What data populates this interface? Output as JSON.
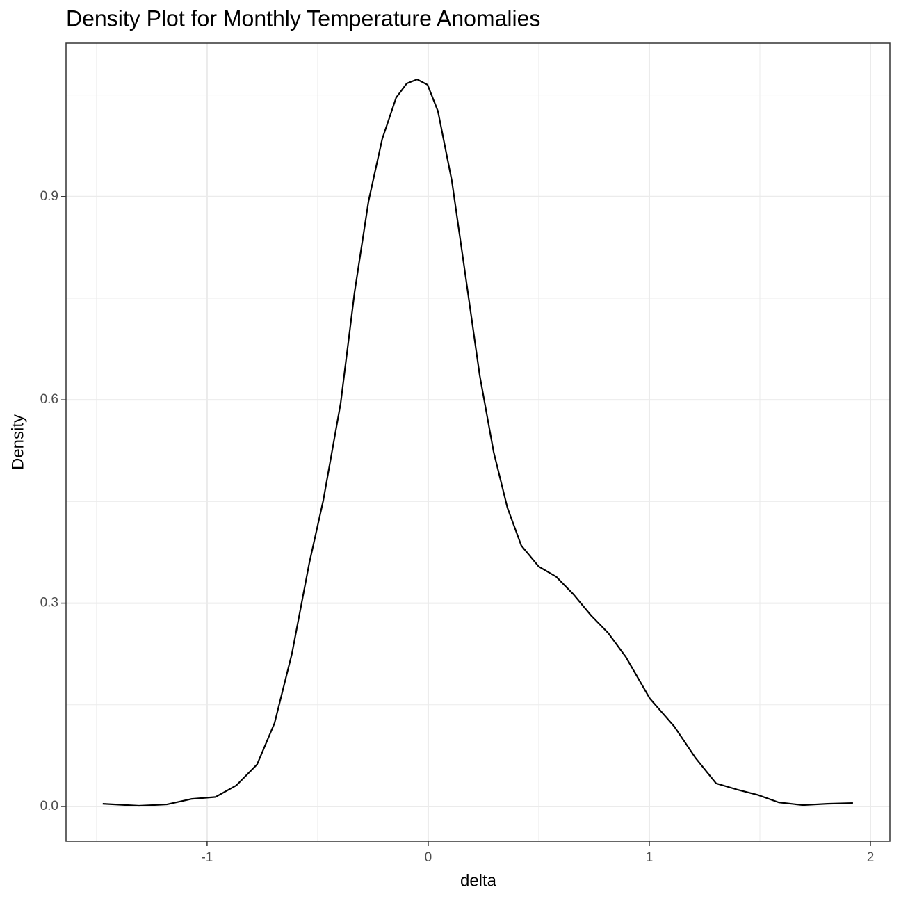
{
  "chart_data": {
    "type": "line",
    "title": "Density Plot for Monthly Temperature Anomalies",
    "x_label": "delta",
    "y_label": "Density",
    "x": [
      -1.472,
      -1.308,
      -1.182,
      -1.072,
      -0.962,
      -0.868,
      -0.774,
      -0.695,
      -0.616,
      -0.538,
      -0.475,
      -0.396,
      -0.333,
      -0.27,
      -0.208,
      -0.145,
      -0.097,
      -0.05,
      -0.003,
      0.044,
      0.107,
      0.17,
      0.233,
      0.296,
      0.358,
      0.421,
      0.5,
      0.579,
      0.657,
      0.736,
      0.814,
      0.893,
      1.003,
      1.113,
      1.208,
      1.302,
      1.396,
      1.491,
      1.585,
      1.695,
      1.805,
      1.921
    ],
    "series": [
      {
        "color": "#000000",
        "values": [
          0.004,
          0.001,
          0.003,
          0.011,
          0.014,
          0.031,
          0.062,
          0.123,
          0.226,
          0.359,
          0.451,
          0.595,
          0.759,
          0.893,
          0.985,
          1.046,
          1.067,
          1.073,
          1.065,
          1.026,
          0.923,
          0.78,
          0.636,
          0.523,
          0.441,
          0.385,
          0.354,
          0.339,
          0.313,
          0.282,
          0.256,
          0.221,
          0.159,
          0.118,
          0.072,
          0.034,
          0.025,
          0.017,
          0.006,
          0.002,
          0.004,
          0.005
        ]
      }
    ],
    "xlim": [
      -1.638,
      2.088
    ],
    "ylim": [
      -0.0513,
      1.1265
    ],
    "xticks": [
      -1,
      0,
      1,
      2
    ],
    "yticks": [
      {
        "value": 0,
        "label": "0.0"
      },
      0.3,
      0.6,
      0.9
    ],
    "x_minor_ticks": [
      -1.5,
      -0.5,
      0.5,
      1.5
    ],
    "y_minor_ticks": [
      0.15,
      0.45,
      0.75,
      1.05
    ],
    "grid": true
  }
}
